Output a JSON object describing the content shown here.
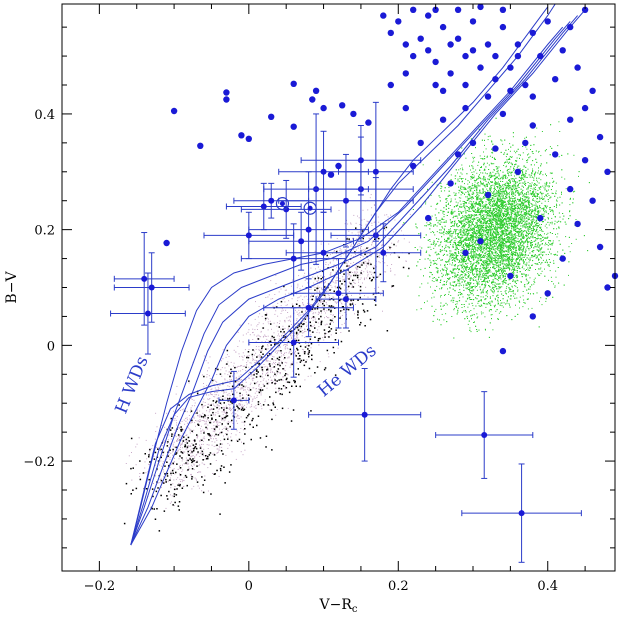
{
  "chart_data": {
    "type": "scatter",
    "xlabel": "V−R",
    "xlabel_sub": "c",
    "ylabel": "B−V",
    "xlim": [
      -0.25,
      0.49
    ],
    "ylim": [
      -0.39,
      0.59
    ],
    "x_ticks": [
      -0.2,
      0,
      0.2,
      0.4
    ],
    "x_tick_labels": [
      "−0.2",
      "0",
      "0.2",
      "0.4"
    ],
    "y_ticks": [
      -0.2,
      0,
      0.2,
      0.4
    ],
    "y_tick_labels": [
      "−0.2",
      "0",
      "0.2",
      "0.4"
    ],
    "annotations": [
      {
        "text": "H WDs",
        "x": -0.165,
        "y": -0.12,
        "angle": -68
      },
      {
        "text": "He WDs",
        "x": 0.1,
        "y": -0.09,
        "angle": -40
      }
    ],
    "colors": {
      "blue": "#1a1ad6",
      "track": "#2b3cc9",
      "green": "#2ecc2e",
      "pink": "#c8a9c8",
      "black": "#000000"
    },
    "blue_points": [
      [
        -0.1,
        0.405
      ],
      [
        -0.11,
        0.177
      ],
      [
        -0.065,
        0.345
      ],
      [
        -0.03,
        0.425
      ],
      [
        -0.03,
        0.437
      ],
      [
        -0.01,
        0.363
      ],
      [
        0.0,
        0.357
      ],
      [
        0.03,
        0.395
      ],
      [
        0.06,
        0.452
      ],
      [
        0.06,
        0.378
      ],
      [
        0.085,
        0.425
      ],
      [
        0.1,
        0.41
      ],
      [
        0.125,
        0.415
      ],
      [
        0.14,
        0.4
      ],
      [
        0.16,
        0.385
      ],
      [
        0.11,
        0.295
      ],
      [
        0.09,
        0.44
      ],
      [
        0.19,
        0.45
      ],
      [
        0.21,
        0.41
      ],
      [
        0.12,
        0.31
      ],
      [
        0.2,
        0.56
      ],
      [
        0.21,
        0.52
      ],
      [
        0.22,
        0.5
      ],
      [
        0.24,
        0.57
      ],
      [
        0.26,
        0.55
      ],
      [
        0.28,
        0.53
      ],
      [
        0.3,
        0.56
      ],
      [
        0.32,
        0.52
      ],
      [
        0.34,
        0.55
      ],
      [
        0.36,
        0.5
      ],
      [
        0.38,
        0.54
      ],
      [
        0.25,
        0.49
      ],
      [
        0.27,
        0.47
      ],
      [
        0.29,
        0.5
      ],
      [
        0.31,
        0.48
      ],
      [
        0.33,
        0.46
      ],
      [
        0.35,
        0.48
      ],
      [
        0.23,
        0.53
      ],
      [
        0.37,
        0.45
      ],
      [
        0.39,
        0.5
      ],
      [
        0.22,
        0.58
      ],
      [
        0.25,
        0.58
      ],
      [
        0.28,
        0.58
      ],
      [
        0.31,
        0.585
      ],
      [
        0.34,
        0.58
      ],
      [
        0.27,
        0.52
      ],
      [
        0.3,
        0.51
      ],
      [
        0.33,
        0.5
      ],
      [
        0.24,
        0.51
      ],
      [
        0.36,
        0.52
      ],
      [
        0.26,
        0.44
      ],
      [
        0.29,
        0.45
      ],
      [
        0.32,
        0.43
      ],
      [
        0.35,
        0.44
      ],
      [
        0.38,
        0.43
      ],
      [
        0.41,
        0.46
      ],
      [
        0.4,
        0.56
      ],
      [
        0.43,
        0.55
      ],
      [
        0.45,
        0.58
      ],
      [
        0.42,
        0.51
      ],
      [
        0.44,
        0.48
      ],
      [
        0.46,
        0.44
      ],
      [
        0.47,
        0.36
      ],
      [
        0.45,
        0.32
      ],
      [
        0.48,
        0.3
      ],
      [
        0.43,
        0.27
      ],
      [
        0.46,
        0.25
      ],
      [
        0.44,
        0.21
      ],
      [
        0.47,
        0.17
      ],
      [
        0.49,
        0.12
      ],
      [
        0.48,
        0.1
      ],
      [
        0.42,
        0.15
      ],
      [
        0.39,
        0.22
      ],
      [
        0.38,
        0.38
      ],
      [
        0.36,
        0.3
      ],
      [
        0.32,
        0.26
      ],
      [
        0.3,
        0.35
      ],
      [
        0.28,
        0.33
      ],
      [
        0.31,
        0.18
      ],
      [
        0.29,
        0.16
      ],
      [
        0.35,
        0.12
      ],
      [
        0.38,
        0.05
      ],
      [
        0.34,
        -0.01
      ],
      [
        0.4,
        0.09
      ],
      [
        0.23,
        0.35
      ],
      [
        0.26,
        0.39
      ],
      [
        0.22,
        0.31
      ],
      [
        0.27,
        0.28
      ],
      [
        0.24,
        0.22
      ],
      [
        0.29,
        0.41
      ],
      [
        0.34,
        0.4
      ],
      [
        0.37,
        0.35
      ],
      [
        0.41,
        0.33
      ],
      [
        0.43,
        0.39
      ],
      [
        0.45,
        0.41
      ],
      [
        0.33,
        0.34
      ],
      [
        0.25,
        0.45
      ],
      [
        0.21,
        0.47
      ],
      [
        0.19,
        0.54
      ],
      [
        0.18,
        0.57
      ]
    ],
    "error_points": [
      {
        "x": -0.14,
        "y": 0.115,
        "xerr": 0.04,
        "yerr": 0.08
      },
      {
        "x": -0.13,
        "y": 0.1,
        "xerr": 0.05,
        "yerr": 0.06
      },
      {
        "x": -0.135,
        "y": 0.055,
        "xerr": 0.05,
        "yerr": 0.07
      },
      {
        "x": -0.02,
        "y": -0.095,
        "xerr": 0.02,
        "yerr": 0.05
      },
      {
        "x": 0.0,
        "y": 0.19,
        "xerr": 0.06,
        "yerr": 0.04
      },
      {
        "x": 0.02,
        "y": 0.24,
        "xerr": 0.05,
        "yerr": 0.04
      },
      {
        "x": 0.03,
        "y": 0.25,
        "xerr": 0.05,
        "yerr": 0.03
      },
      {
        "x": 0.05,
        "y": 0.235,
        "xerr": 0.06,
        "yerr": 0.05
      },
      {
        "x": 0.06,
        "y": 0.005,
        "xerr": 0.06,
        "yerr": 0.06
      },
      {
        "x": 0.06,
        "y": 0.15,
        "xerr": 0.07,
        "yerr": 0.06
      },
      {
        "x": 0.07,
        "y": 0.18,
        "xerr": 0.07,
        "yerr": 0.05
      },
      {
        "x": 0.08,
        "y": 0.2,
        "xerr": 0.08,
        "yerr": 0.1
      },
      {
        "x": 0.08,
        "y": 0.065,
        "xerr": 0.06,
        "yerr": 0.05
      },
      {
        "x": 0.09,
        "y": 0.27,
        "xerr": 0.07,
        "yerr": 0.13
      },
      {
        "x": 0.1,
        "y": 0.3,
        "xerr": 0.06,
        "yerr": 0.07
      },
      {
        "x": 0.1,
        "y": 0.16,
        "xerr": 0.05,
        "yerr": 0.07
      },
      {
        "x": 0.12,
        "y": 0.09,
        "xerr": 0.06,
        "yerr": 0.06
      },
      {
        "x": 0.13,
        "y": 0.08,
        "xerr": 0.04,
        "yerr": 0.05
      },
      {
        "x": 0.13,
        "y": 0.25,
        "xerr": 0.09,
        "yerr": 0.08
      },
      {
        "x": 0.15,
        "y": 0.27,
        "xerr": 0.07,
        "yerr": 0.09
      },
      {
        "x": 0.15,
        "y": 0.32,
        "xerr": 0.08,
        "yerr": 0.06
      },
      {
        "x": 0.17,
        "y": 0.19,
        "xerr": 0.06,
        "yerr": 0.1
      },
      {
        "x": 0.17,
        "y": 0.3,
        "xerr": 0.05,
        "yerr": 0.12
      },
      {
        "x": 0.18,
        "y": 0.16,
        "xerr": 0.05,
        "yerr": 0.05
      },
      {
        "x": 0.155,
        "y": -0.12,
        "xerr": 0.075,
        "yerr": 0.08
      },
      {
        "x": 0.315,
        "y": -0.155,
        "xerr": 0.065,
        "yerr": 0.075
      },
      {
        "x": 0.365,
        "y": -0.29,
        "xerr": 0.08,
        "yerr": 0.085
      }
    ],
    "circled_points": [
      {
        "x": 0.045,
        "y": 0.245
      },
      {
        "x": 0.082,
        "y": 0.237
      }
    ],
    "h_wd_tracks": [
      [
        [
          -0.158,
          -0.345
        ],
        [
          -0.145,
          -0.28
        ],
        [
          -0.13,
          -0.2
        ],
        [
          -0.11,
          -0.1
        ],
        [
          -0.09,
          -0.01
        ],
        [
          -0.07,
          0.06
        ],
        [
          -0.05,
          0.1
        ],
        [
          -0.02,
          0.125
        ],
        [
          0.02,
          0.14
        ],
        [
          0.06,
          0.15
        ],
        [
          0.1,
          0.16
        ],
        [
          0.15,
          0.185
        ],
        [
          0.2,
          0.23
        ],
        [
          0.25,
          0.3
        ],
        [
          0.3,
          0.37
        ],
        [
          0.35,
          0.44
        ],
        [
          0.4,
          0.52
        ],
        [
          0.42,
          0.55
        ]
      ],
      [
        [
          -0.158,
          -0.345
        ],
        [
          -0.14,
          -0.28
        ],
        [
          -0.12,
          -0.2
        ],
        [
          -0.1,
          -0.12
        ],
        [
          -0.08,
          -0.05
        ],
        [
          -0.06,
          0.02
        ],
        [
          -0.04,
          0.07
        ],
        [
          -0.01,
          0.1
        ],
        [
          0.03,
          0.12
        ],
        [
          0.07,
          0.14
        ],
        [
          0.11,
          0.15
        ],
        [
          0.16,
          0.18
        ],
        [
          0.21,
          0.24
        ],
        [
          0.26,
          0.31
        ],
        [
          0.31,
          0.38
        ],
        [
          0.36,
          0.45
        ],
        [
          0.41,
          0.53
        ],
        [
          0.43,
          0.56
        ]
      ],
      [
        [
          -0.158,
          -0.345
        ],
        [
          -0.135,
          -0.28
        ],
        [
          -0.115,
          -0.21
        ],
        [
          -0.095,
          -0.14
        ],
        [
          -0.075,
          -0.08
        ],
        [
          -0.055,
          -0.01
        ],
        [
          -0.035,
          0.04
        ],
        [
          0.0,
          0.08
        ],
        [
          0.04,
          0.1
        ],
        [
          0.08,
          0.12
        ],
        [
          0.12,
          0.14
        ],
        [
          0.17,
          0.17
        ],
        [
          0.22,
          0.24
        ],
        [
          0.27,
          0.31
        ],
        [
          0.32,
          0.39
        ],
        [
          0.37,
          0.46
        ],
        [
          0.42,
          0.54
        ],
        [
          0.44,
          0.57
        ]
      ],
      [
        [
          -0.158,
          -0.345
        ],
        [
          -0.13,
          -0.28
        ],
        [
          -0.11,
          -0.22
        ],
        [
          -0.09,
          -0.16
        ],
        [
          -0.07,
          -0.11
        ],
        [
          -0.05,
          -0.06
        ],
        [
          -0.03,
          0.0
        ],
        [
          0.0,
          0.05
        ],
        [
          0.04,
          0.08
        ],
        [
          0.08,
          0.1
        ],
        [
          0.13,
          0.13
        ],
        [
          0.18,
          0.17
        ],
        [
          0.23,
          0.24
        ],
        [
          0.28,
          0.32
        ],
        [
          0.33,
          0.4
        ],
        [
          0.38,
          0.47
        ],
        [
          0.43,
          0.55
        ],
        [
          0.45,
          0.58
        ]
      ]
    ],
    "he_wd_tracks": [
      [
        [
          -0.158,
          -0.345
        ],
        [
          -0.14,
          -0.27
        ],
        [
          -0.12,
          -0.18
        ],
        [
          -0.1,
          -0.12
        ],
        [
          -0.08,
          -0.09
        ],
        [
          -0.05,
          -0.08
        ],
        [
          -0.02,
          -0.075
        ],
        [
          0.01,
          -0.04
        ],
        [
          0.04,
          0.0
        ],
        [
          0.07,
          0.04
        ],
        [
          0.1,
          0.09
        ],
        [
          0.13,
          0.15
        ],
        [
          0.16,
          0.21
        ],
        [
          0.19,
          0.27
        ],
        [
          0.22,
          0.32
        ],
        [
          0.26,
          0.37
        ],
        [
          0.3,
          0.42
        ],
        [
          0.34,
          0.48
        ],
        [
          0.38,
          0.55
        ],
        [
          0.4,
          0.585
        ]
      ],
      [
        [
          -0.158,
          -0.345
        ],
        [
          -0.142,
          -0.26
        ],
        [
          -0.125,
          -0.17
        ],
        [
          -0.105,
          -0.11
        ],
        [
          -0.08,
          -0.085
        ],
        [
          -0.05,
          -0.07
        ],
        [
          -0.015,
          -0.06
        ],
        [
          0.02,
          -0.02
        ],
        [
          0.05,
          0.02
        ],
        [
          0.08,
          0.06
        ],
        [
          0.11,
          0.11
        ],
        [
          0.14,
          0.17
        ],
        [
          0.17,
          0.23
        ],
        [
          0.2,
          0.28
        ],
        [
          0.24,
          0.33
        ],
        [
          0.28,
          0.38
        ],
        [
          0.32,
          0.44
        ],
        [
          0.36,
          0.5
        ],
        [
          0.4,
          0.57
        ],
        [
          0.41,
          0.59
        ]
      ]
    ]
  }
}
